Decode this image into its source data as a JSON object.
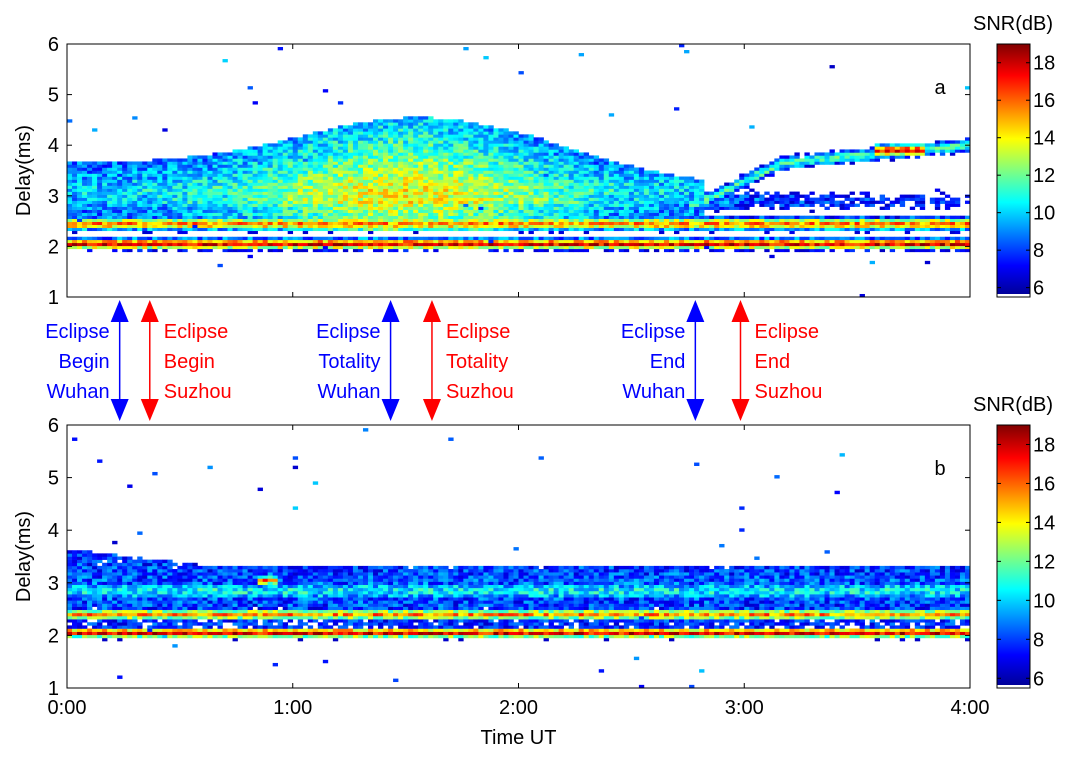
{
  "chart_data": [
    {
      "type": "heatmap",
      "panel_label": "a",
      "xlabel": "",
      "ylabel": "Delay(ms)",
      "xlim": [
        "0:00",
        "4:00"
      ],
      "ylim": [
        1,
        6
      ],
      "x_ticks": [
        "0:00",
        "1:00",
        "2:00",
        "3:00",
        "4:00"
      ],
      "y_ticks": [
        "1",
        "2",
        "3",
        "4",
        "5",
        "6"
      ],
      "colorbar": {
        "label": "SNR(dB)",
        "range": [
          5.5,
          19
        ],
        "ticks": [
          "6",
          "8",
          "10",
          "12",
          "14",
          "16",
          "18"
        ]
      },
      "features": [
        {
          "delay_ms": 2.05,
          "snr_db": 17.5
        },
        {
          "delay_ms": 2.45,
          "snr_db": 16
        },
        {
          "delay_ms": 2.9,
          "snr_db": 13
        }
      ]
    },
    {
      "type": "heatmap",
      "panel_label": "b",
      "xlabel": "Time UT",
      "ylabel": "Delay(ms)",
      "xlim": [
        "0:00",
        "4:00"
      ],
      "ylim": [
        1,
        6
      ],
      "x_ticks": [
        "0:00",
        "1:00",
        "2:00",
        "3:00",
        "4:00"
      ],
      "y_ticks": [
        "1",
        "2",
        "3",
        "4",
        "5",
        "6"
      ],
      "colorbar": {
        "label": "SNR(dB)",
        "range": [
          5.5,
          19
        ],
        "ticks": [
          "6",
          "8",
          "10",
          "12",
          "14",
          "16",
          "18"
        ]
      },
      "features": [
        {
          "delay_ms": 2.05,
          "snr_db": 17.5
        },
        {
          "delay_ms": 2.4,
          "snr_db": 15.5
        },
        {
          "delay_ms": 2.9,
          "snr_db": 11
        }
      ]
    }
  ],
  "events": [
    {
      "time_ut": "0:14",
      "lines": [
        "Eclipse",
        "Begin",
        "Wuhan"
      ],
      "color": "#0000ff"
    },
    {
      "time_ut": "0:22",
      "lines": [
        "Eclipse",
        "Begin",
        "Suzhou"
      ],
      "color": "#ff0000"
    },
    {
      "time_ut": "1:26",
      "lines": [
        "Eclipse",
        "Totality",
        "Wuhan"
      ],
      "color": "#0000ff"
    },
    {
      "time_ut": "1:37",
      "lines": [
        "Eclipse",
        "Totality",
        "Suzhou"
      ],
      "color": "#ff0000"
    },
    {
      "time_ut": "2:47",
      "lines": [
        "Eclipse",
        "End",
        "Wuhan"
      ],
      "color": "#0000ff"
    },
    {
      "time_ut": "2:59",
      "lines": [
        "Eclipse",
        "End",
        "Suzhou"
      ],
      "color": "#ff0000"
    }
  ]
}
